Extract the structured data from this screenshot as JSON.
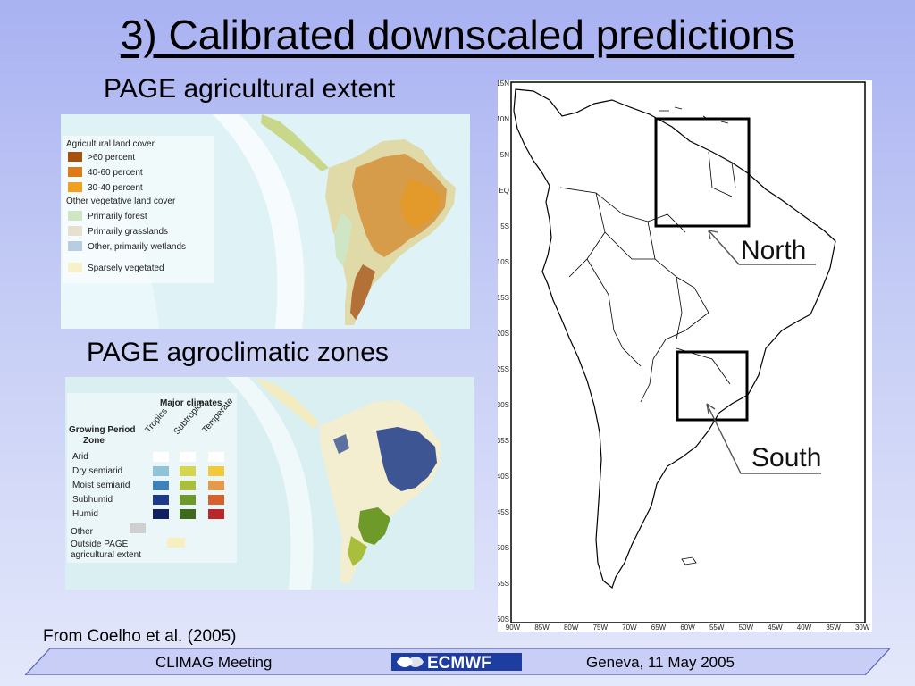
{
  "slide": {
    "title": "3) Calibrated downscaled predictions",
    "subtitle_extent": "PAGE agricultural extent",
    "subtitle_zones": "PAGE agroclimatic zones",
    "citation": "From Coelho et al. (2005)"
  },
  "extent_legend": {
    "heading": "Agricultural land cover",
    "items": [
      {
        "label": ">60 percent",
        "color": "#a5520f"
      },
      {
        "label": "40-60 percent",
        "color": "#e07a18"
      },
      {
        "label": "30-40 percent",
        "color": "#f0a21e"
      }
    ],
    "heading2": "Other vegetative land cover",
    "items2": [
      {
        "label": "Primarily forest",
        "color": "#cfe6c4"
      },
      {
        "label": "Primarily grasslands",
        "color": "#e7e0cf"
      },
      {
        "label": "Other, primarily wetlands",
        "color": "#b7cde2"
      },
      {
        "label": "Sparsely vegetated",
        "color": "#f6f1c8"
      }
    ]
  },
  "zones_legend": {
    "heading": "Major climates",
    "row_heading_1": "Growing Period",
    "row_heading_2": "Zone",
    "columns": [
      "Tropics",
      "Subtropics",
      "Temperate"
    ],
    "rows": [
      {
        "label": "Arid",
        "colors": [
          "#ffffff",
          "#ffffff",
          "#ffffff"
        ]
      },
      {
        "label": "Dry semiarid",
        "colors": [
          "#8ec3d8",
          "#d6d64e",
          "#f1c93a"
        ]
      },
      {
        "label": "Moist semiarid",
        "colors": [
          "#3e82b8",
          "#a9be3a",
          "#e59a4b"
        ]
      },
      {
        "label": "Subhumid",
        "colors": [
          "#1d3a8a",
          "#6e9a2a",
          "#d8602a"
        ]
      },
      {
        "label": "Humid",
        "colors": [
          "#102060",
          "#3e6a1e",
          "#b8282a"
        ]
      }
    ],
    "other_label": "Other",
    "other_color": "#cfcfcf",
    "outside_label_1": "Outside PAGE",
    "outside_label_2": "agricultural extent",
    "outside_color": "#f6efc0"
  },
  "map": {
    "lat_ticks": [
      "15N",
      "10N",
      "5N",
      "EQ",
      "5S",
      "10S",
      "15S",
      "20S",
      "25S",
      "30S",
      "35S",
      "40S",
      "45S",
      "50S",
      "55S",
      "60S"
    ],
    "lon_ticks": [
      "90W",
      "85W",
      "80W",
      "75W",
      "70W",
      "65W",
      "60W",
      "55W",
      "50W",
      "45W",
      "40W",
      "35W",
      "30W"
    ],
    "regions": [
      {
        "label": "North"
      },
      {
        "label": "South"
      }
    ]
  },
  "footer": {
    "left": "CLIMAG Meeting",
    "logo": "ECMWF",
    "right": "Geneva, 11 May 2005"
  }
}
